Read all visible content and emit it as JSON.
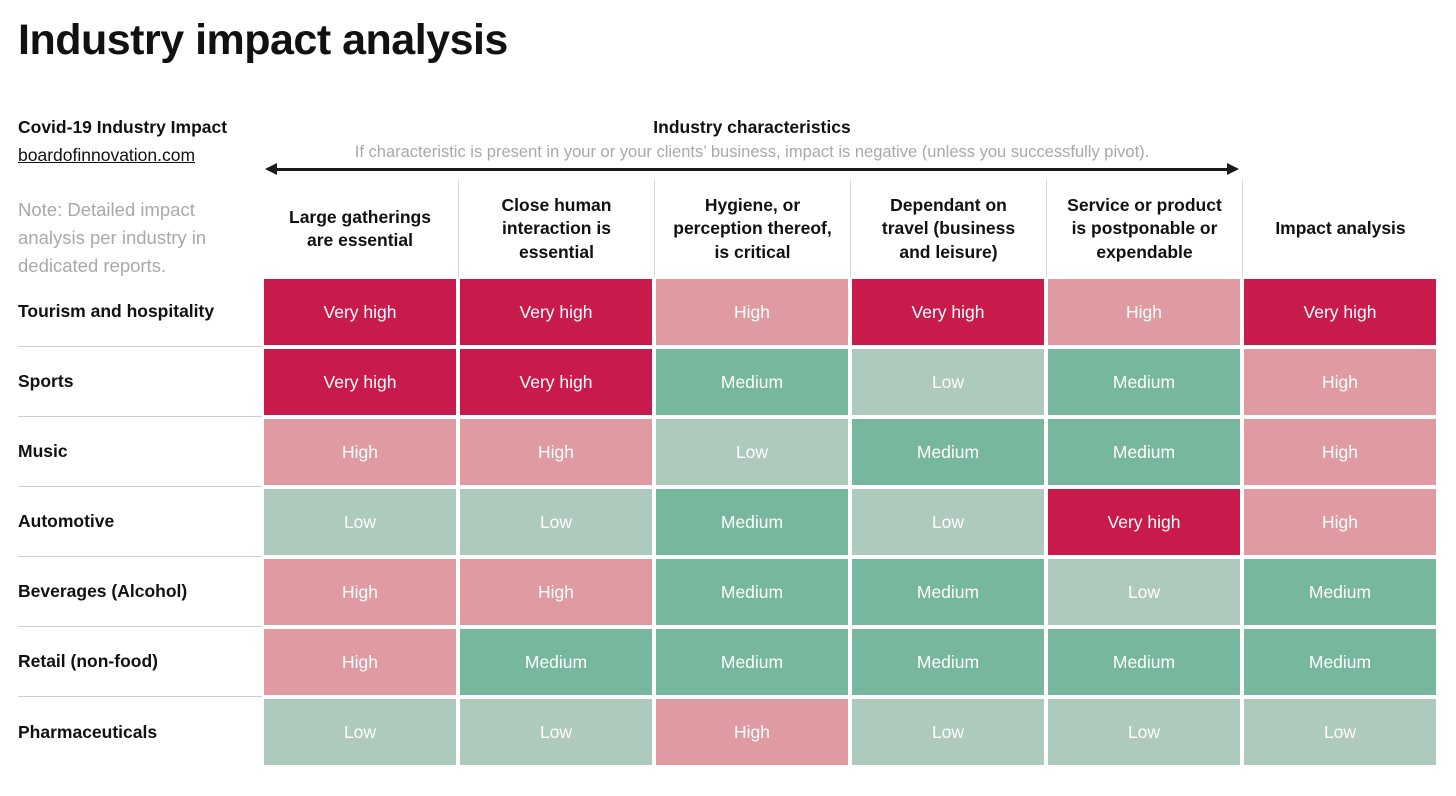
{
  "page": {
    "title": "Industry impact analysis"
  },
  "source": {
    "title": "Covid-19 Industry Impact",
    "link": "boardofinnovation.com",
    "note": "Note: Detailed impact analysis per industry in dedicated reports."
  },
  "characteristics": {
    "title": "Industry characteristics",
    "subtitle": "If characteristic is present in your or your clients’ business, impact is negative (unless you successfully pivot)."
  },
  "chart_data": {
    "type": "heatmap",
    "columns": [
      "Large gatherings are essential",
      "Close human interaction is essential",
      "Hygiene, or perception thereof, is critical",
      "Dependant on travel (business and leisure)",
      "Service or product is postponable or expendable",
      "Impact analysis"
    ],
    "rows": [
      {
        "industry": "Tourism and hospitality",
        "values": [
          "Very high",
          "Very high",
          "High",
          "Very high",
          "High",
          "Very high"
        ]
      },
      {
        "industry": "Sports",
        "values": [
          "Very high",
          "Very high",
          "Medium",
          "Low",
          "Medium",
          "High"
        ]
      },
      {
        "industry": "Music",
        "values": [
          "High",
          "High",
          "Low",
          "Medium",
          "Medium",
          "High"
        ]
      },
      {
        "industry": "Automotive",
        "values": [
          "Low",
          "Low",
          "Medium",
          "Low",
          "Very high",
          "High"
        ]
      },
      {
        "industry": "Beverages (Alcohol)",
        "values": [
          "High",
          "High",
          "Medium",
          "Medium",
          "Low",
          "Medium"
        ]
      },
      {
        "industry": "Retail (non-food)",
        "values": [
          "High",
          "Medium",
          "Medium",
          "Medium",
          "Medium",
          "Medium"
        ]
      },
      {
        "industry": "Pharmaceuticals",
        "values": [
          "Low",
          "Low",
          "High",
          "Low",
          "Low",
          "Low"
        ]
      }
    ],
    "rating_colors": {
      "Very high": "#C81A4B",
      "High": "#DF9AA2",
      "Medium": "#76B79D",
      "Low": "#ADCABD"
    },
    "cell_text_color": "#FFFFFF",
    "legend_position": "none",
    "grid": false
  }
}
